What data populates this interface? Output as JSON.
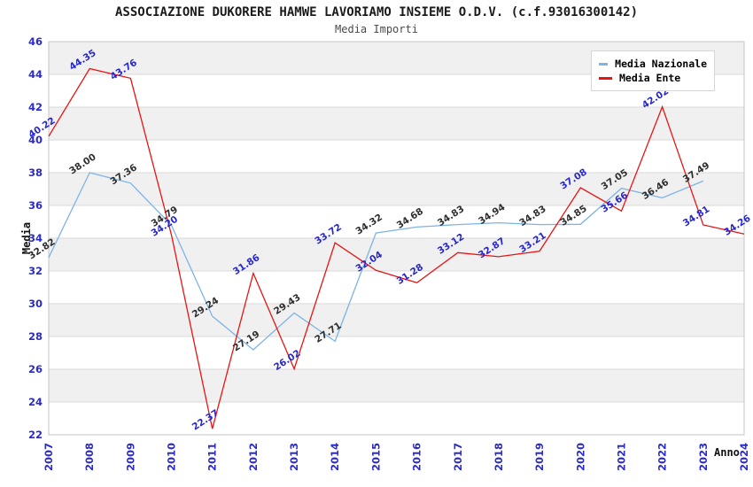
{
  "chart_data": {
    "type": "line",
    "title": "ASSOCIAZIONE DUKORERE HAMWE LAVORIAMO INSIEME O.D.V. (c.f.93016300142)",
    "subtitle": "Media Importi",
    "xlabel": "Anno",
    "ylabel": "Media",
    "ylim": [
      22,
      46
    ],
    "ytick_step": 2,
    "grid": "horizontal-bands",
    "band_color": "#f0f0f0",
    "gridline_color": "#dadada",
    "axis_color": "#c4c4c4",
    "tick_label_color": "#2a2acd",
    "legend_position": "top-right",
    "categories": [
      "2007",
      "2008",
      "2009",
      "2010",
      "2011",
      "2012",
      "2013",
      "2014",
      "2015",
      "2016",
      "2017",
      "2018",
      "2019",
      "2020",
      "2021",
      "2022",
      "2023",
      "2024"
    ],
    "series": [
      {
        "name": "Media Nazionale",
        "color": "#7db4e6",
        "label_color": "#2e2e2e",
        "values": [
          32.82,
          38.0,
          37.36,
          34.79,
          29.24,
          27.19,
          29.43,
          27.71,
          34.32,
          34.68,
          34.83,
          34.94,
          34.83,
          34.85,
          37.05,
          36.46,
          37.49,
          null
        ]
      },
      {
        "name": "Media Ente",
        "color": "#e81414",
        "label_color": "#2727cc",
        "values": [
          40.22,
          44.35,
          43.76,
          34.2,
          22.37,
          31.86,
          26.02,
          33.72,
          32.04,
          31.28,
          33.12,
          32.87,
          33.21,
          37.08,
          35.66,
          42.02,
          34.81,
          34.26
        ]
      }
    ]
  }
}
